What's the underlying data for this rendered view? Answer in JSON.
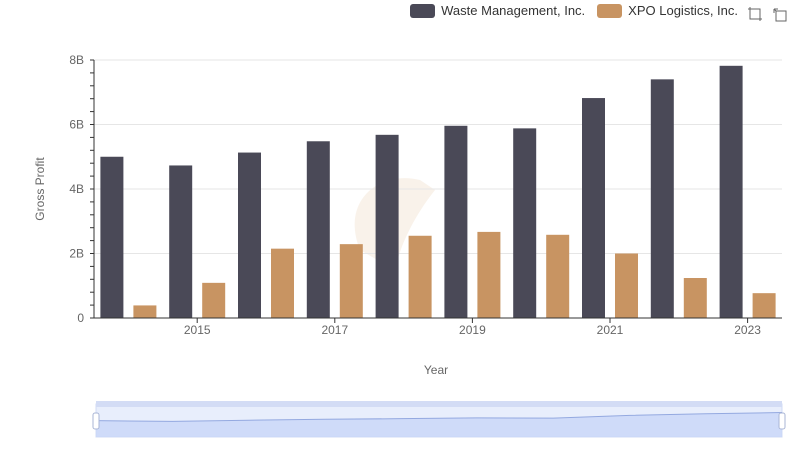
{
  "chart_data": {
    "type": "bar",
    "xlabel": "Year",
    "ylabel": "Gross Profit",
    "x": [
      2014,
      2015,
      2016,
      2017,
      2018,
      2019,
      2020,
      2021,
      2022,
      2023
    ],
    "x_tick_labels": [
      "2015",
      "2017",
      "2019",
      "2021",
      "2023"
    ],
    "y_tick_labels": [
      "0",
      "2B",
      "4B",
      "6B",
      "8B"
    ],
    "ylim": [
      0,
      8000000000
    ],
    "grid": "horizontal",
    "legend_position": "top-right",
    "series": [
      {
        "name": "Waste Management, Inc.",
        "color": "#4a4957",
        "values": [
          5000000000,
          4730000000,
          5130000000,
          5480000000,
          5680000000,
          5960000000,
          5880000000,
          6820000000,
          7400000000,
          7820000000
        ]
      },
      {
        "name": "XPO Logistics, Inc.",
        "color": "#c89462",
        "values": [
          390000000,
          1090000000,
          2150000000,
          2290000000,
          2550000000,
          2670000000,
          2580000000,
          2000000000,
          1240000000,
          770000000
        ]
      }
    ]
  },
  "toolbox": {
    "zoom_icon": "zoom-icon",
    "restore_icon": "restore-icon"
  }
}
